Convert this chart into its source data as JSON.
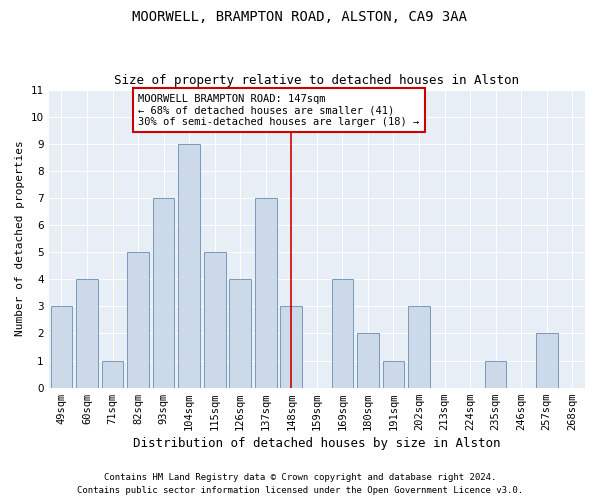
{
  "title": "MOORWELL, BRAMPTON ROAD, ALSTON, CA9 3AA",
  "subtitle": "Size of property relative to detached houses in Alston",
  "xlabel": "Distribution of detached houses by size in Alston",
  "ylabel": "Number of detached properties",
  "categories": [
    "49sqm",
    "60sqm",
    "71sqm",
    "82sqm",
    "93sqm",
    "104sqm",
    "115sqm",
    "126sqm",
    "137sqm",
    "148sqm",
    "159sqm",
    "169sqm",
    "180sqm",
    "191sqm",
    "202sqm",
    "213sqm",
    "224sqm",
    "235sqm",
    "246sqm",
    "257sqm",
    "268sqm"
  ],
  "values": [
    3,
    4,
    1,
    5,
    7,
    9,
    5,
    4,
    7,
    3,
    0,
    4,
    2,
    1,
    3,
    0,
    0,
    1,
    0,
    2,
    0
  ],
  "bar_color": "#ccd9e8",
  "bar_edge_color": "#7799bb",
  "vline_x_index": 9,
  "vline_color": "#cc0000",
  "annotation_text": "MOORWELL BRAMPTON ROAD: 147sqm\n← 68% of detached houses are smaller (41)\n30% of semi-detached houses are larger (18) →",
  "annotation_box_color": "#cc0000",
  "ylim": [
    0,
    11
  ],
  "yticks": [
    0,
    1,
    2,
    3,
    4,
    5,
    6,
    7,
    8,
    9,
    10,
    11
  ],
  "footer_line1": "Contains HM Land Registry data © Crown copyright and database right 2024.",
  "footer_line2": "Contains public sector information licensed under the Open Government Licence v3.0.",
  "fig_background_color": "#ffffff",
  "plot_bg_color": "#e8eef5",
  "title_fontsize": 10,
  "subtitle_fontsize": 9,
  "ylabel_fontsize": 8,
  "xlabel_fontsize": 9,
  "tick_fontsize": 7.5,
  "footer_fontsize": 6.5,
  "annotation_fontsize": 7.5
}
